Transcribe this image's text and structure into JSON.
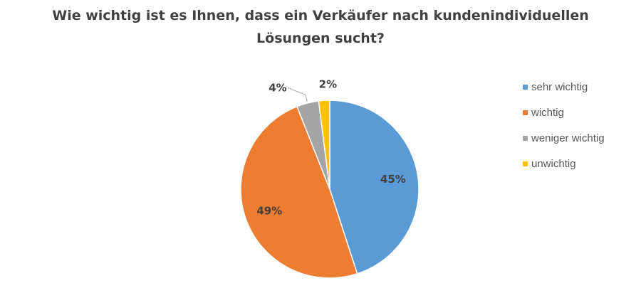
{
  "chart_data": {
    "type": "pie",
    "title_lines": [
      "Wie wichtig ist es Ihnen, dass ein Verkäufer nach kundenindividuellen",
      "Lösungen sucht?"
    ],
    "categories": [
      "sehr wichtig",
      "wichtig",
      "weniger wichtig",
      "unwichtig"
    ],
    "values": [
      45,
      49,
      4,
      2
    ],
    "data_labels": [
      "45%",
      "49%",
      "4%",
      "2%"
    ],
    "colors": [
      "#5B9BD5",
      "#ED7D31",
      "#A5A5A5",
      "#FFC000"
    ],
    "legend_position": "right"
  }
}
